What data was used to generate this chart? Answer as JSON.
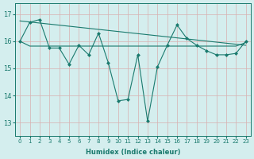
{
  "xlabel": "Humidex (Indice chaleur)",
  "bg_color": "#d4eeee",
  "grid_color": "#c0dede",
  "line_color": "#1a7a6e",
  "xlim": [
    -0.5,
    23.5
  ],
  "ylim": [
    12.5,
    17.4
  ],
  "yticks": [
    13,
    14,
    15,
    16,
    17
  ],
  "xticks": [
    0,
    1,
    2,
    3,
    4,
    5,
    6,
    7,
    8,
    9,
    10,
    11,
    12,
    13,
    14,
    15,
    16,
    17,
    18,
    19,
    20,
    21,
    22,
    23
  ],
  "main_x": [
    0,
    1,
    2,
    3,
    4,
    5,
    6,
    7,
    8,
    9,
    10,
    11,
    12,
    13,
    14,
    15,
    16,
    17,
    18,
    19,
    20,
    21,
    22,
    23
  ],
  "main_y": [
    16.0,
    16.7,
    16.8,
    15.75,
    15.75,
    15.15,
    15.85,
    15.5,
    16.3,
    15.2,
    13.8,
    13.85,
    15.5,
    13.05,
    15.05,
    15.85,
    16.6,
    16.1,
    15.85,
    15.65,
    15.5,
    15.5,
    15.55,
    16.0
  ],
  "trend_x": [
    0,
    23
  ],
  "trend_y": [
    16.75,
    15.85
  ],
  "flat_x": [
    0,
    1,
    2,
    3,
    4,
    5,
    6,
    7,
    8,
    9,
    10,
    11,
    12,
    13,
    14,
    15,
    16,
    17,
    18,
    19,
    20,
    21,
    22,
    23
  ],
  "flat_y": [
    16.0,
    15.82,
    15.82,
    15.82,
    15.82,
    15.82,
    15.82,
    15.82,
    15.82,
    15.82,
    15.82,
    15.82,
    15.82,
    15.82,
    15.82,
    15.82,
    15.82,
    15.82,
    15.82,
    15.82,
    15.82,
    15.82,
    15.82,
    15.95
  ]
}
